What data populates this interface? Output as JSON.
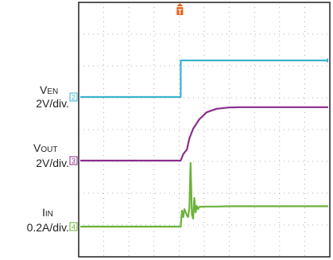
{
  "chart_data": {
    "type": "line",
    "title": "",
    "grid": true,
    "grid_divisions": {
      "x": 10,
      "y": 8
    },
    "trigger_marker": "T",
    "series": [
      {
        "channel": "2",
        "name": "VEN",
        "name_main": "V",
        "name_sub": "EN",
        "scale": "2V/div.",
        "color": "#3ab3cc",
        "x": [
          0,
          4.05,
          4.05,
          10
        ],
        "y": [
          0,
          0,
          1.15,
          1.15
        ]
      },
      {
        "channel": "3",
        "name": "VOUT",
        "name_main": "V",
        "name_sub": "OUT",
        "scale": "2V/div.",
        "color": "#8a2d8c",
        "x": [
          0,
          4.05,
          4.15,
          4.3,
          4.4,
          4.55,
          4.8,
          5.1,
          5.5,
          6.0,
          6.5,
          7.0,
          8.0,
          10
        ],
        "y": [
          0,
          0,
          0.2,
          0.35,
          0.7,
          1.0,
          1.3,
          1.52,
          1.63,
          1.67,
          1.68,
          1.68,
          1.68,
          1.68
        ]
      },
      {
        "channel": "4",
        "name": "IIN",
        "name_main": "I",
        "name_sub": "IN",
        "scale": "0.2A/div.",
        "color": "#6bb23a",
        "x": [
          0,
          4.05,
          4.1,
          4.15,
          4.2,
          4.3,
          4.35,
          4.4,
          4.45,
          4.5,
          4.55,
          4.6,
          4.65,
          4.7,
          4.75,
          4.8,
          5.0,
          5.5,
          6.0,
          7.0,
          10
        ],
        "y": [
          0,
          0,
          0.5,
          0.3,
          0.55,
          0.35,
          0.3,
          0.6,
          2.0,
          0.4,
          0.25,
          0.9,
          0.45,
          0.65,
          0.55,
          0.62,
          0.63,
          0.63,
          0.64,
          0.64,
          0.64
        ]
      }
    ]
  }
}
